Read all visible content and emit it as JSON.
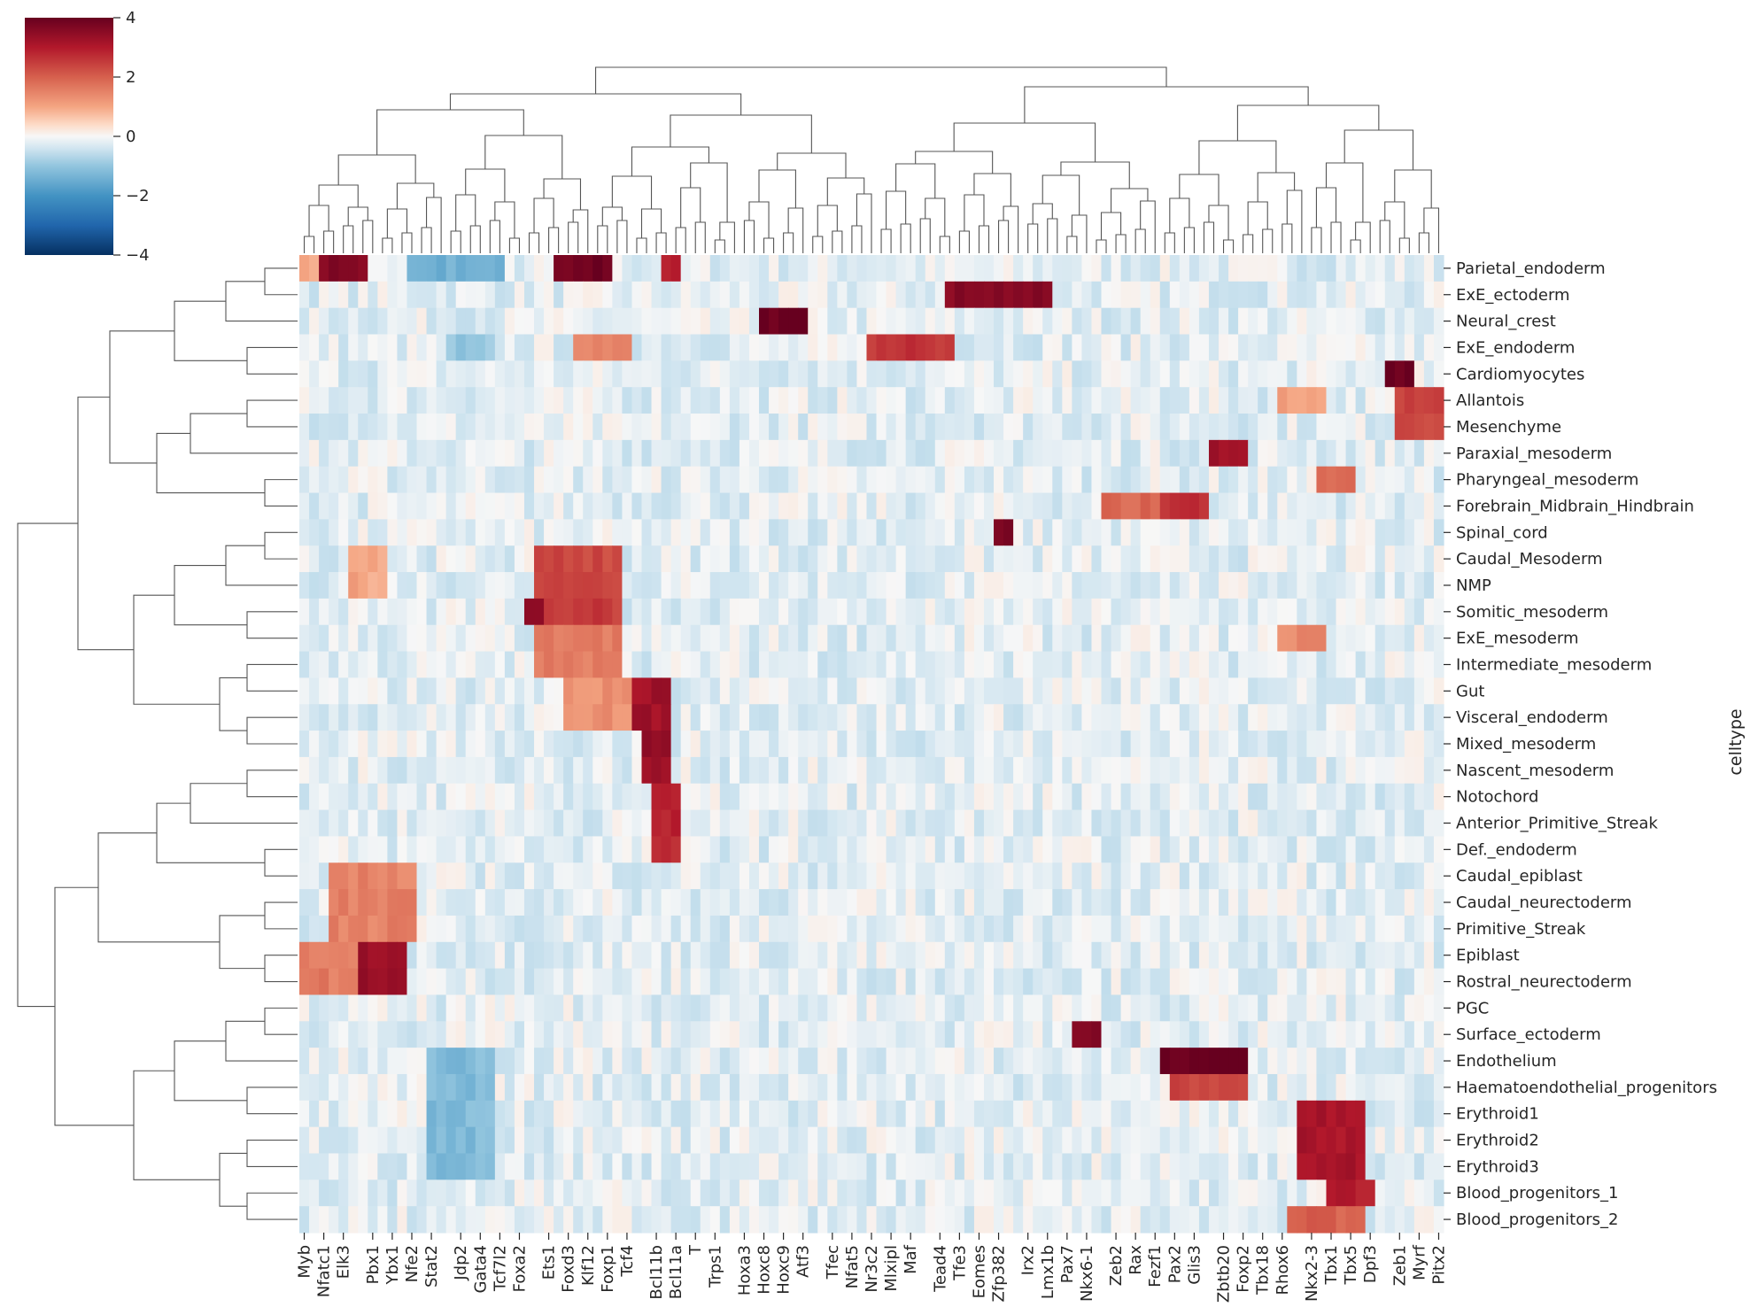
{
  "chart_data": {
    "type": "heatmap",
    "colorbar": {
      "min": -4,
      "max": 4,
      "ticks": [
        4,
        2,
        0,
        -2,
        -4
      ],
      "tick_labels": [
        "4",
        "2",
        "0",
        "−2",
        "−4"
      ],
      "colormap": "RdBu_r"
    },
    "ylabel": "celltype",
    "rows": [
      "Parietal_endoderm",
      "ExE_ectoderm",
      "Neural_crest",
      "ExE_endoderm",
      "Cardiomyocytes",
      "Allantois",
      "Mesenchyme",
      "Paraxial_mesoderm",
      "Pharyngeal_mesoderm",
      "Forebrain_Midbrain_Hindbrain",
      "Spinal_cord",
      "Caudal_Mesoderm",
      "NMP",
      "Somitic_mesoderm",
      "ExE_mesoderm",
      "Intermediate_mesoderm",
      "Gut",
      "Visceral_endoderm",
      "Mixed_mesoderm",
      "Nascent_mesoderm",
      "Notochord",
      "Anterior_Primitive_Streak",
      "Def._endoderm",
      "Caudal_epiblast",
      "Caudal_neurectoderm",
      "Primitive_Streak",
      "Epiblast",
      "Rostral_neurectoderm",
      "PGC",
      "Surface_ectoderm",
      "Endothelium",
      "Haematoendothelial_progenitors",
      "Erythroid1",
      "Erythroid2",
      "Erythroid3",
      "Blood_progenitors_1",
      "Blood_progenitors_2"
    ],
    "column_labels": [
      "Myb",
      "Nfatc1",
      "Elk3",
      "Pbx1",
      "Ybx1",
      "Nfe2",
      "Stat2",
      "Jdp2",
      "Gata4",
      "Tcf7l2",
      "Foxa2",
      "Ets1",
      "Foxd3",
      "Klf12",
      "Foxp1",
      "Tcf4",
      "Bcl11b",
      "Bcl11a",
      "T",
      "Trps1",
      "Hoxa3",
      "Hoxc8",
      "Hoxc9",
      "Atf3",
      "Tfec",
      "Nfat5",
      "Nr3c2",
      "Mlxipl",
      "Maf",
      "Tead4",
      "Tfe3",
      "Eomes",
      "Zfp382",
      "Irx2",
      "Lmx1b",
      "Pax7",
      "Nkx6-1",
      "Zeb2",
      "Rax",
      "Fezf1",
      "Pax2",
      "Glis3",
      "Zbtb20",
      "Foxp2",
      "Tbx18",
      "Rhox6",
      "Nkx2-3",
      "Tbx1",
      "Tbx5",
      "Dpf3",
      "Zeb1",
      "Myrf",
      "Pitx2"
    ],
    "n_columns": 117,
    "blocks": [
      {
        "rows": [
          0,
          0
        ],
        "cols": [
          2,
          6
        ],
        "value": 3.6
      },
      {
        "rows": [
          0,
          0
        ],
        "cols": [
          26,
          31
        ],
        "value": 3.9
      },
      {
        "rows": [
          0,
          0
        ],
        "cols": [
          37,
          38
        ],
        "value": 2.8
      },
      {
        "rows": [
          0,
          0
        ],
        "cols": [
          0,
          1
        ],
        "value": 0.9
      },
      {
        "rows": [
          0,
          0
        ],
        "cols": [
          11,
          20
        ],
        "value": -1.4
      },
      {
        "rows": [
          1,
          1
        ],
        "cols": [
          66,
          76
        ],
        "value": 3.6
      },
      {
        "rows": [
          2,
          2
        ],
        "cols": [
          47,
          51
        ],
        "value": 4.0
      },
      {
        "rows": [
          3,
          3
        ],
        "cols": [
          58,
          66
        ],
        "value": 2.6
      },
      {
        "rows": [
          3,
          3
        ],
        "cols": [
          28,
          33
        ],
        "value": 1.4
      },
      {
        "rows": [
          3,
          3
        ],
        "cols": [
          15,
          19
        ],
        "value": -1.0
      },
      {
        "rows": [
          4,
          4
        ],
        "cols": [
          111,
          113
        ],
        "value": 4.0
      },
      {
        "rows": [
          5,
          6
        ],
        "cols": [
          112,
          116
        ],
        "value": 2.4
      },
      {
        "rows": [
          5,
          5
        ],
        "cols": [
          100,
          104
        ],
        "value": 1.1
      },
      {
        "rows": [
          7,
          7
        ],
        "cols": [
          93,
          96
        ],
        "value": 3.3
      },
      {
        "rows": [
          8,
          8
        ],
        "cols": [
          104,
          107
        ],
        "value": 1.8
      },
      {
        "rows": [
          9,
          9
        ],
        "cols": [
          88,
          92
        ],
        "value": 2.6
      },
      {
        "rows": [
          9,
          9
        ],
        "cols": [
          82,
          87
        ],
        "value": 1.9
      },
      {
        "rows": [
          10,
          10
        ],
        "cols": [
          71,
          72
        ],
        "value": 3.8
      },
      {
        "rows": [
          11,
          12
        ],
        "cols": [
          24,
          32
        ],
        "value": 2.3
      },
      {
        "rows": [
          11,
          12
        ],
        "cols": [
          5,
          8
        ],
        "value": 1.0
      },
      {
        "rows": [
          13,
          13
        ],
        "cols": [
          24,
          32
        ],
        "value": 2.5
      },
      {
        "rows": [
          13,
          13
        ],
        "cols": [
          23,
          24
        ],
        "value": 3.4
      },
      {
        "rows": [
          14,
          15
        ],
        "cols": [
          24,
          32
        ],
        "value": 1.6
      },
      {
        "rows": [
          14,
          14
        ],
        "cols": [
          100,
          104
        ],
        "value": 1.4
      },
      {
        "rows": [
          16,
          17
        ],
        "cols": [
          34,
          37
        ],
        "value": 3.2
      },
      {
        "rows": [
          16,
          17
        ],
        "cols": [
          27,
          33
        ],
        "value": 1.3
      },
      {
        "rows": [
          18,
          19
        ],
        "cols": [
          35,
          37
        ],
        "value": 3.4
      },
      {
        "rows": [
          20,
          22
        ],
        "cols": [
          36,
          38
        ],
        "value": 2.8
      },
      {
        "rows": [
          23,
          25
        ],
        "cols": [
          3,
          11
        ],
        "value": 1.5
      },
      {
        "rows": [
          26,
          27
        ],
        "cols": [
          6,
          10
        ],
        "value": 3.3
      },
      {
        "rows": [
          26,
          27
        ],
        "cols": [
          0,
          5
        ],
        "value": 1.6
      },
      {
        "rows": [
          29,
          29
        ],
        "cols": [
          79,
          81
        ],
        "value": 3.7
      },
      {
        "rows": [
          30,
          30
        ],
        "cols": [
          88,
          96
        ],
        "value": 4.0
      },
      {
        "rows": [
          31,
          31
        ],
        "cols": [
          89,
          96
        ],
        "value": 2.4
      },
      {
        "rows": [
          32,
          34
        ],
        "cols": [
          102,
          108
        ],
        "value": 3.1
      },
      {
        "rows": [
          30,
          34
        ],
        "cols": [
          13,
          19
        ],
        "value": -1.2
      },
      {
        "rows": [
          35,
          35
        ],
        "cols": [
          105,
          109
        ],
        "value": 3.0
      },
      {
        "rows": [
          36,
          36
        ],
        "cols": [
          101,
          108
        ],
        "value": 2.0
      }
    ]
  }
}
